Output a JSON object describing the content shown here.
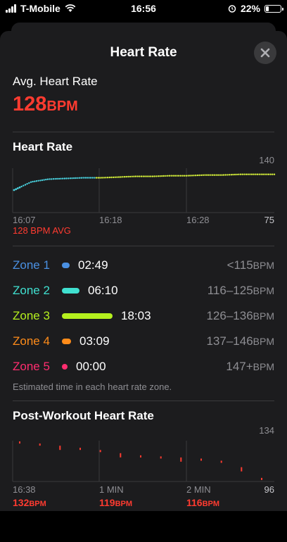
{
  "status_bar": {
    "carrier": "T-Mobile",
    "time": "16:56",
    "battery": "22%",
    "battery_level": 0.22
  },
  "sheet": {
    "title": "Heart Rate",
    "close_icon": "close-icon"
  },
  "average": {
    "label": "Avg. Heart Rate",
    "value": "128",
    "unit": "BPM"
  },
  "heart_rate_chart": {
    "section_title": "Heart Rate",
    "y_max_label": "140",
    "y_min_label": "75",
    "x_labels": [
      "16:07",
      "16:18",
      "16:28"
    ],
    "avg_label": "128 BPM AVG"
  },
  "zones": [
    {
      "name": "Zone 1",
      "time": "02:49",
      "range": "<115",
      "unit": "BPM",
      "color": "#4a90e2",
      "fraction": 0.094
    },
    {
      "name": "Zone 2",
      "time": "06:10",
      "range": "116–125",
      "unit": "BPM",
      "color": "#40e0d0",
      "fraction": 0.205
    },
    {
      "name": "Zone 3",
      "time": "18:03",
      "range": "126–136",
      "unit": "BPM",
      "color": "#b5f01e",
      "fraction": 0.6
    },
    {
      "name": "Zone 4",
      "time": "03:09",
      "range": "137–146",
      "unit": "BPM",
      "color": "#ff8c1a",
      "fraction": 0.105
    },
    {
      "name": "Zone 5",
      "time": "00:00",
      "range": "147+",
      "unit": "BPM",
      "color": "#ff2d6f",
      "fraction": 0.0
    }
  ],
  "zone_note": "Estimated time in each heart rate zone.",
  "post_workout": {
    "section_title": "Post-Workout Heart Rate",
    "y_max_label": "134",
    "y_min_label": "96",
    "x_labels": [
      "16:38",
      "1 MIN",
      "2 MIN"
    ],
    "values": [
      {
        "value": "132",
        "unit": "BPM"
      },
      {
        "value": "119",
        "unit": "BPM"
      },
      {
        "value": "116",
        "unit": "BPM"
      }
    ]
  },
  "chart_data": [
    {
      "type": "scatter",
      "ylim": [
        75,
        140
      ],
      "x": [
        16.07,
        16.09,
        16.11,
        16.13,
        16.15,
        16.17,
        16.19,
        16.21,
        16.23,
        16.25,
        16.27,
        16.29,
        16.31,
        16.33,
        16.35,
        16.37
      ],
      "y": [
        108,
        120,
        124,
        125,
        126,
        126,
        127,
        128,
        128,
        129,
        129,
        130,
        130,
        131,
        131,
        131
      ],
      "series_colors": [
        "#4ad3e0",
        "#d7f23a"
      ]
    },
    {
      "type": "scatter",
      "ylim": [
        96,
        134
      ],
      "x": [
        0,
        0.25,
        0.5,
        0.75,
        1,
        1.25,
        1.5,
        1.75,
        2,
        2.25,
        2.5,
        2.75,
        3
      ],
      "y": [
        132,
        130,
        128,
        126,
        124,
        121,
        119,
        118,
        117,
        116,
        114,
        108,
        98
      ],
      "color": "#ff3b30"
    }
  ]
}
